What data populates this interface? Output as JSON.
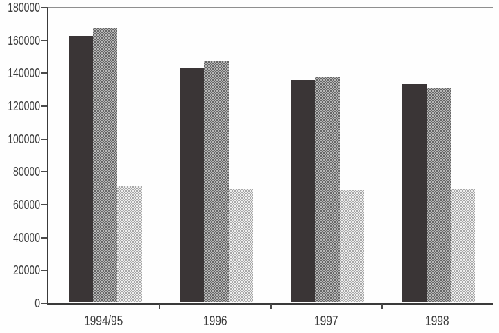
{
  "chart_data": {
    "type": "bar",
    "title": "",
    "xlabel": "",
    "ylabel": "",
    "categories": [
      "1994/95",
      "1996",
      "1997",
      "1998"
    ],
    "series": [
      {
        "name": "series-1-solid-dark",
        "pattern": "solid",
        "color_a": "#3a3536",
        "color_b": "#3a3536",
        "values": [
          162000,
          142500,
          135000,
          132500
        ]
      },
      {
        "name": "series-2-crosshatch-medium",
        "pattern": "checker",
        "color_a": "#666666",
        "color_b": "#b6b6b6",
        "values": [
          167000,
          146500,
          137000,
          130500
        ]
      },
      {
        "name": "series-3-dotted-light",
        "pattern": "checker",
        "color_a": "#a8a8a8",
        "color_b": "#efefef",
        "values": [
          70500,
          69000,
          68500,
          69000
        ]
      }
    ],
    "ylim": [
      0,
      180000
    ],
    "ytick_step": 20000,
    "ytick_labels": [
      "0",
      "20000",
      "40000",
      "60000",
      "80000",
      "100000",
      "120000",
      "140000",
      "160000",
      "180000"
    ],
    "grid": false,
    "legend": "none",
    "frame": "full-box",
    "axis_color": "#3a3a3a"
  }
}
